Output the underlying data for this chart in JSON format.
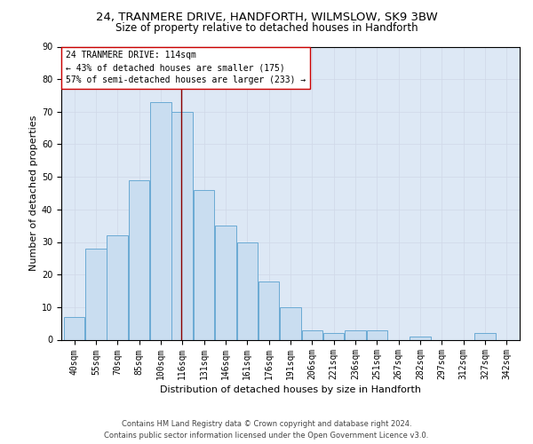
{
  "title": "24, TRANMERE DRIVE, HANDFORTH, WILMSLOW, SK9 3BW",
  "subtitle": "Size of property relative to detached houses in Handforth",
  "xlabel": "Distribution of detached houses by size in Handforth",
  "ylabel": "Number of detached properties",
  "categories": [
    "40sqm",
    "55sqm",
    "70sqm",
    "85sqm",
    "100sqm",
    "116sqm",
    "131sqm",
    "146sqm",
    "161sqm",
    "176sqm",
    "191sqm",
    "206sqm",
    "221sqm",
    "236sqm",
    "251sqm",
    "267sqm",
    "282sqm",
    "297sqm",
    "312sqm",
    "327sqm",
    "342sqm"
  ],
  "values": [
    7,
    28,
    32,
    49,
    73,
    70,
    46,
    35,
    30,
    18,
    10,
    3,
    2,
    3,
    3,
    0,
    1,
    0,
    0,
    2,
    0
  ],
  "bar_color": "#c9ddf0",
  "bar_edge_color": "#6aaad4",
  "vline_color": "#8b0000",
  "vline_x": 4.93,
  "annotation_text_line1": "24 TRANMERE DRIVE: 114sqm",
  "annotation_text_line2": "← 43% of detached houses are smaller (175)",
  "annotation_text_line3": "57% of semi-detached houses are larger (233) →",
  "annotation_box_color": "#ffffff",
  "annotation_border_color": "#cc0000",
  "ylim": [
    0,
    90
  ],
  "yticks": [
    0,
    10,
    20,
    30,
    40,
    50,
    60,
    70,
    80,
    90
  ],
  "grid_color": "#d0d8e8",
  "background_color": "#dde8f5",
  "footer_line1": "Contains HM Land Registry data © Crown copyright and database right 2024.",
  "footer_line2": "Contains public sector information licensed under the Open Government Licence v3.0.",
  "title_fontsize": 9.5,
  "subtitle_fontsize": 8.5,
  "tick_fontsize": 7,
  "ylabel_fontsize": 8,
  "xlabel_fontsize": 8,
  "annotation_fontsize": 7,
  "footer_fontsize": 6
}
